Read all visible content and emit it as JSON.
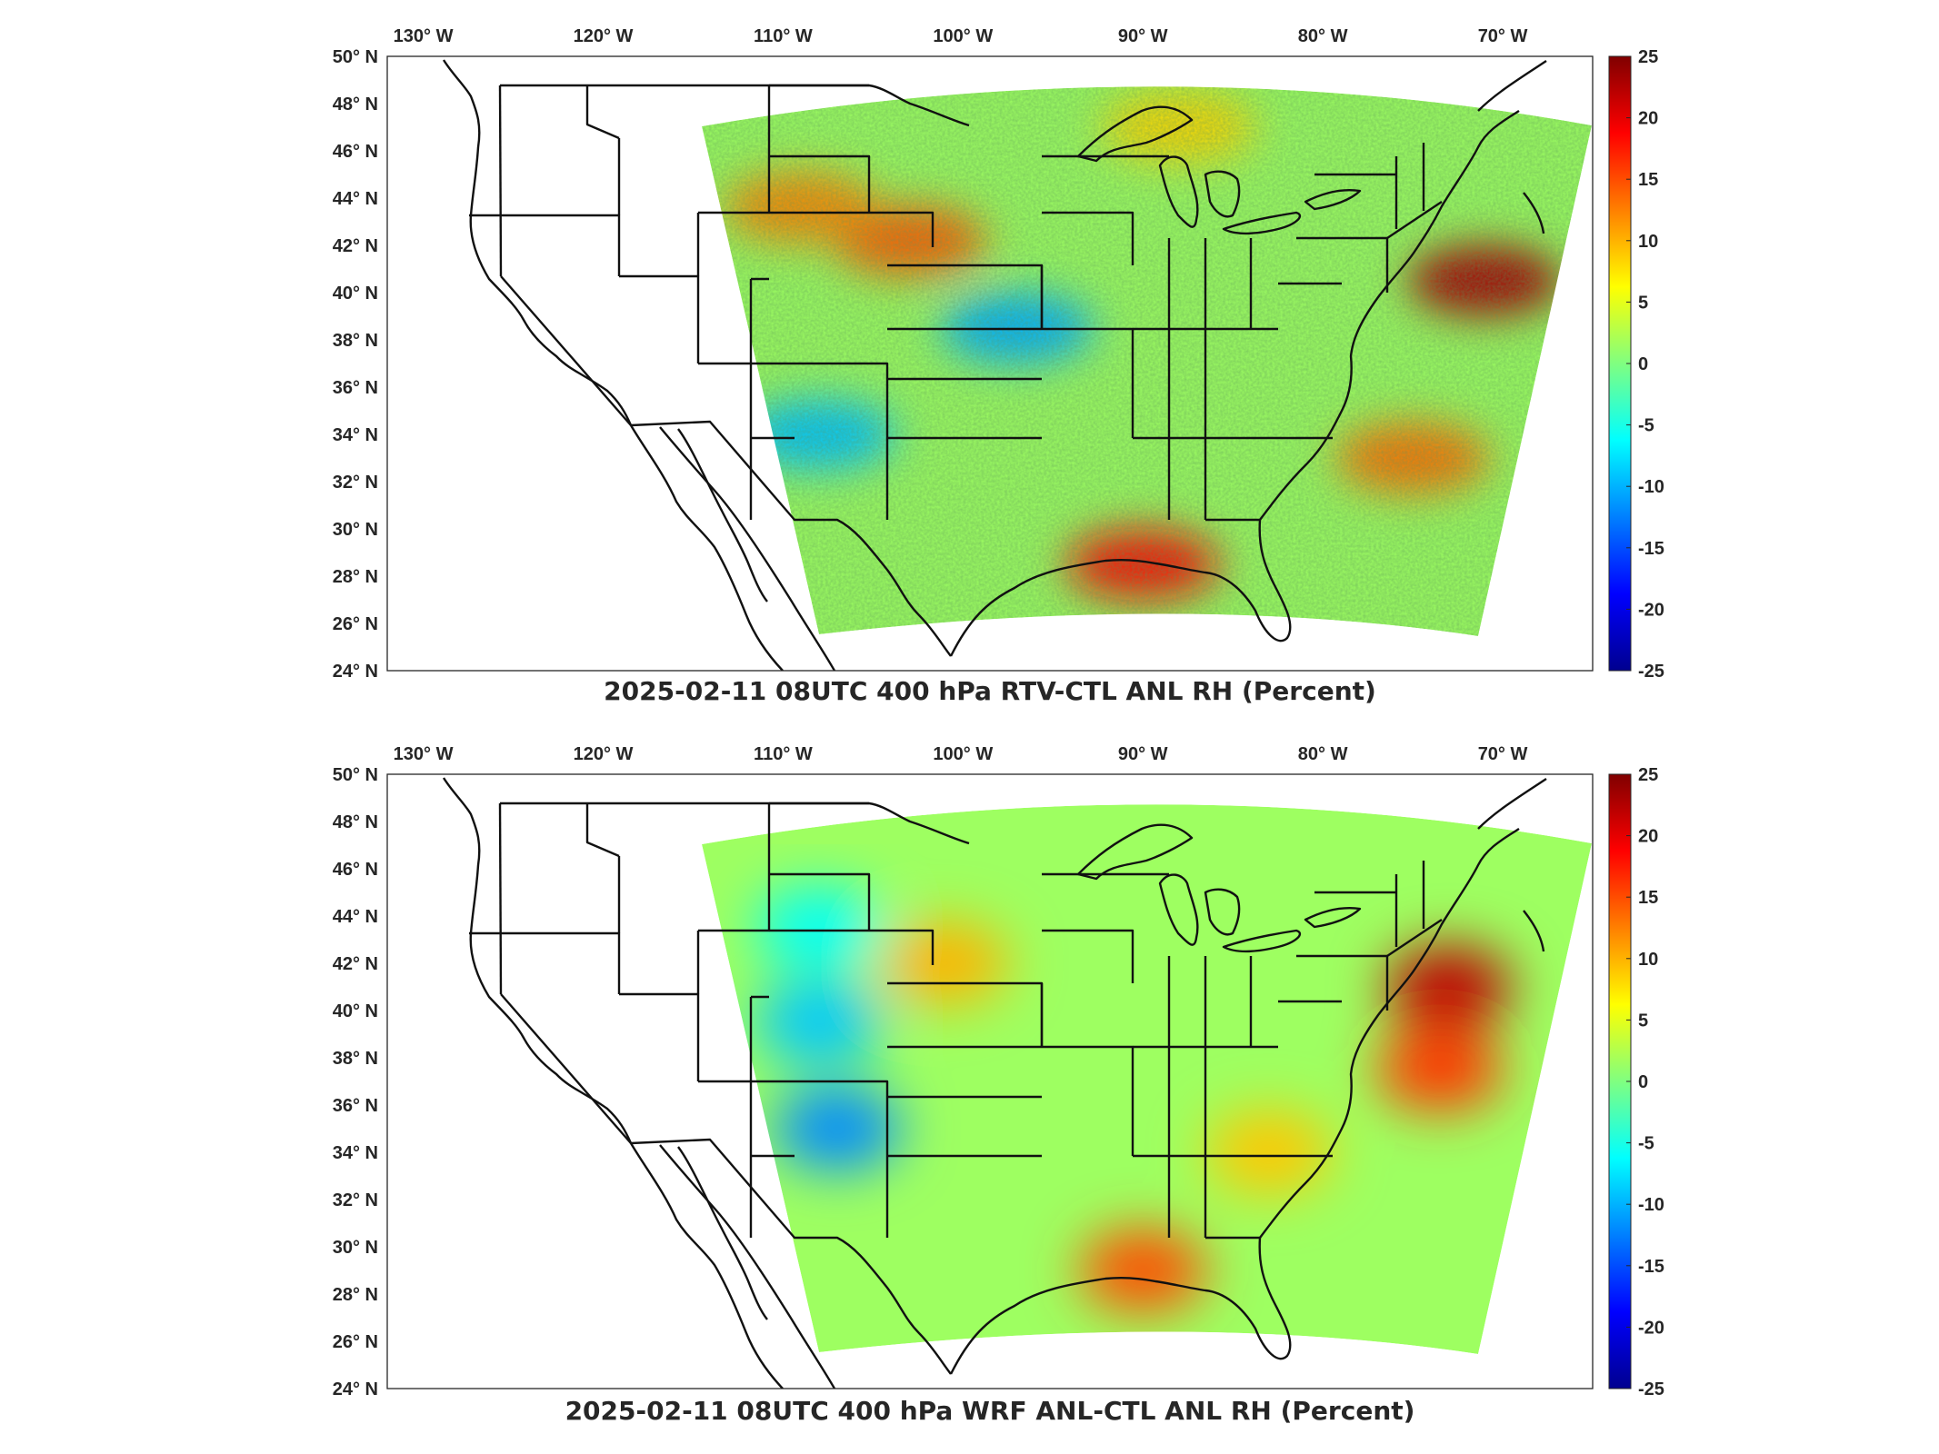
{
  "panels": [
    {
      "id": "top",
      "title": "2025-02-11 08UTC 400 hPa RTV-CTL ANL RH (Percent)",
      "lon_labels": [
        "130° W",
        "120° W",
        "110° W",
        "100° W",
        "90° W",
        "80° W",
        "70° W"
      ],
      "lat_labels": [
        "24° N",
        "26° N",
        "28° N",
        "30° N",
        "32° N",
        "34° N",
        "36° N",
        "38° N",
        "40° N",
        "42° N",
        "44° N",
        "46° N",
        "48° N",
        "50° N"
      ],
      "colorbar": {
        "min": -25,
        "max": 25,
        "ticks": [
          "25",
          "20",
          "15",
          "10",
          "5",
          "0",
          "-5",
          "-10",
          "-15",
          "-20",
          "-25"
        ],
        "colormap": "jet"
      },
      "field_style": "noisy",
      "features": [
        {
          "name": "wyoming-nebraska-positive",
          "lon": -103,
          "lat": 42.2,
          "value": 14
        },
        {
          "name": "northwest-positive",
          "lon": -109,
          "lat": 43.6,
          "value": 12
        },
        {
          "name": "new-england-coast-positive",
          "lon": -71,
          "lat": 40.5,
          "value": 23
        },
        {
          "name": "gulf-coast-positive",
          "lon": -90,
          "lat": 28.5,
          "value": 18
        },
        {
          "name": "atlantic-southeast-positive",
          "lon": -75,
          "lat": 33,
          "value": 13
        },
        {
          "name": "southwest-negative",
          "lon": -108,
          "lat": 34,
          "value": -9
        },
        {
          "name": "kansas-negative",
          "lon": -97,
          "lat": 38.5,
          "value": -10
        },
        {
          "name": "great-lakes-positive",
          "lon": -88,
          "lat": 47,
          "value": 8
        }
      ]
    },
    {
      "id": "bottom",
      "title": "2025-02-11 08UTC 400 hPa WRF ANL-CTL ANL RH (Percent)",
      "lon_labels": [
        "130° W",
        "120° W",
        "110° W",
        "100° W",
        "90° W",
        "80° W",
        "70° W"
      ],
      "lat_labels": [
        "24° N",
        "26° N",
        "28° N",
        "30° N",
        "32° N",
        "34° N",
        "36° N",
        "38° N",
        "40° N",
        "42° N",
        "44° N",
        "46° N",
        "48° N",
        "50° N"
      ],
      "colorbar": {
        "min": -25,
        "max": 25,
        "ticks": [
          "25",
          "20",
          "15",
          "10",
          "5",
          "0",
          "-5",
          "-10",
          "-15",
          "-20",
          "-25"
        ],
        "colormap": "jet"
      },
      "field_style": "smooth",
      "features": [
        {
          "name": "new-england-coast-positive",
          "lon": -73,
          "lat": 41,
          "value": 22
        },
        {
          "name": "offshore-positive",
          "lon": -73.5,
          "lat": 37.5,
          "value": 16
        },
        {
          "name": "gulf-coast-positive",
          "lon": -90,
          "lat": 29,
          "value": 15
        },
        {
          "name": "nebraska-positive",
          "lon": -101,
          "lat": 42,
          "value": 10
        },
        {
          "name": "southeast-positive",
          "lon": -83,
          "lat": 34,
          "value": 9
        },
        {
          "name": "new-mexico-negative",
          "lon": -107,
          "lat": 35,
          "value": -12
        },
        {
          "name": "colorado-negative",
          "lon": -108,
          "lat": 39.5,
          "value": -9
        },
        {
          "name": "wyoming-negative",
          "lon": -108,
          "lat": 43.5,
          "value": -6
        }
      ]
    }
  ]
}
